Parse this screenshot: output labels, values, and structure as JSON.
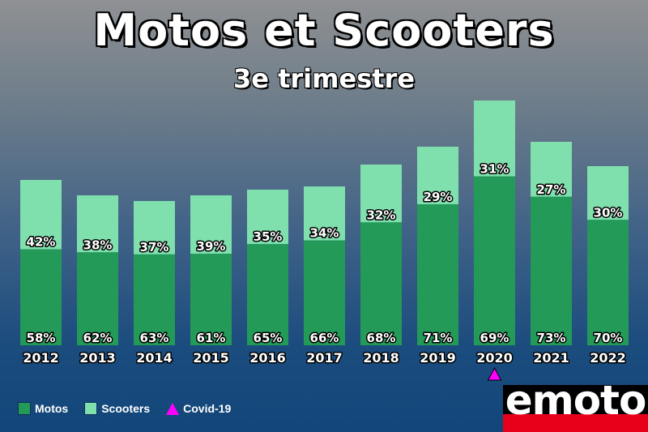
{
  "title": "Motos et Scooters",
  "subtitle": "3e trimestre",
  "legend": {
    "motos": "Motos",
    "scooters": "Scooters",
    "covid": "Covid-19"
  },
  "logo": {
    "text": "emoto"
  },
  "colors": {
    "motos": "#239a58",
    "scooters": "#7fe0ad",
    "covid_marker": "#ff00ff",
    "logo_red": "#e8001a"
  },
  "chart_data": {
    "type": "bar",
    "stacked": true,
    "title": "Motos et Scooters",
    "subtitle": "3e trimestre",
    "categories": [
      "2012",
      "2013",
      "2014",
      "2015",
      "2016",
      "2017",
      "2018",
      "2019",
      "2020",
      "2021",
      "2022"
    ],
    "series": [
      {
        "name": "Motos",
        "values": [
          58,
          62,
          63,
          61,
          65,
          66,
          68,
          71,
          69,
          73,
          70
        ],
        "labels": [
          "58%",
          "62%",
          "63%",
          "61%",
          "65%",
          "66%",
          "68%",
          "71%",
          "69%",
          "73%",
          "70%"
        ]
      },
      {
        "name": "Scooters",
        "values": [
          42,
          38,
          37,
          39,
          35,
          34,
          32,
          29,
          31,
          27,
          30
        ],
        "labels": [
          "42%",
          "38%",
          "37%",
          "39%",
          "35%",
          "34%",
          "32%",
          "29%",
          "31%",
          "27%",
          "30%"
        ]
      }
    ],
    "relative_totals": [
      204,
      185,
      178,
      185,
      192,
      196,
      223,
      245,
      302,
      251,
      221
    ],
    "markers": [
      {
        "category": "2020",
        "name": "Covid-19",
        "shape": "triangle"
      }
    ],
    "legend_position": "bottom-left",
    "grid": false
  }
}
